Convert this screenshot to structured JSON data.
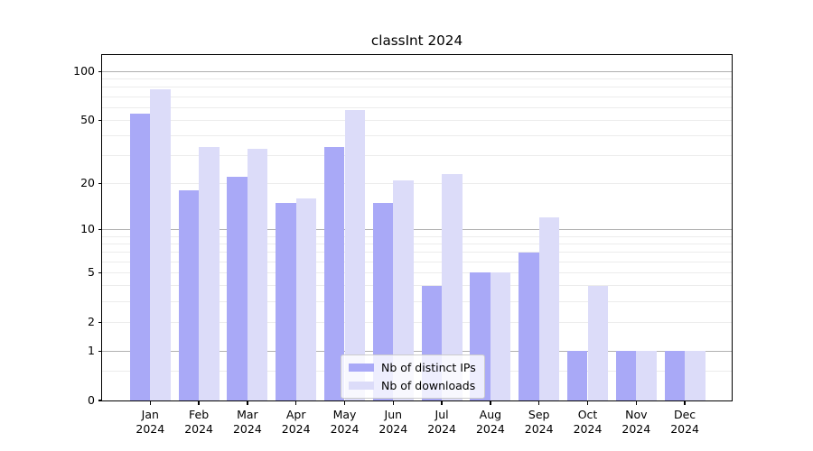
{
  "chart_data": {
    "type": "bar",
    "title": "classInt 2024",
    "year_label": "2024",
    "categories": [
      "Jan",
      "Feb",
      "Mar",
      "Apr",
      "May",
      "Jun",
      "Jul",
      "Aug",
      "Sep",
      "Oct",
      "Nov",
      "Dec"
    ],
    "series": [
      {
        "name": "Nb of distinct IPs",
        "color": "#a9a9f7",
        "values": [
          55,
          18,
          22,
          15,
          34,
          15,
          4,
          5,
          7,
          1,
          1,
          1
        ]
      },
      {
        "name": "Nb of downloads",
        "color": "#dcdcf9",
        "values": [
          78,
          34,
          33,
          16,
          58,
          21,
          23,
          5,
          12,
          4,
          1,
          1
        ]
      }
    ],
    "y_axis": {
      "scale": "log1p",
      "tick_values": [
        0,
        1,
        2,
        5,
        10,
        20,
        50,
        100
      ],
      "range_top": 126
    },
    "grid": {
      "major_values": [
        1,
        10,
        100
      ],
      "minor_values": [
        0.5,
        2,
        3,
        4,
        5,
        6,
        7,
        8,
        9,
        20,
        30,
        40,
        50,
        60,
        70,
        80,
        90
      ]
    },
    "legend": {
      "position": "lower-center-inside"
    }
  },
  "colors": {
    "background": "#ffffff",
    "major_grid": "#b0b0b0",
    "minor_grid": "#ececec",
    "spine": "#000000"
  }
}
